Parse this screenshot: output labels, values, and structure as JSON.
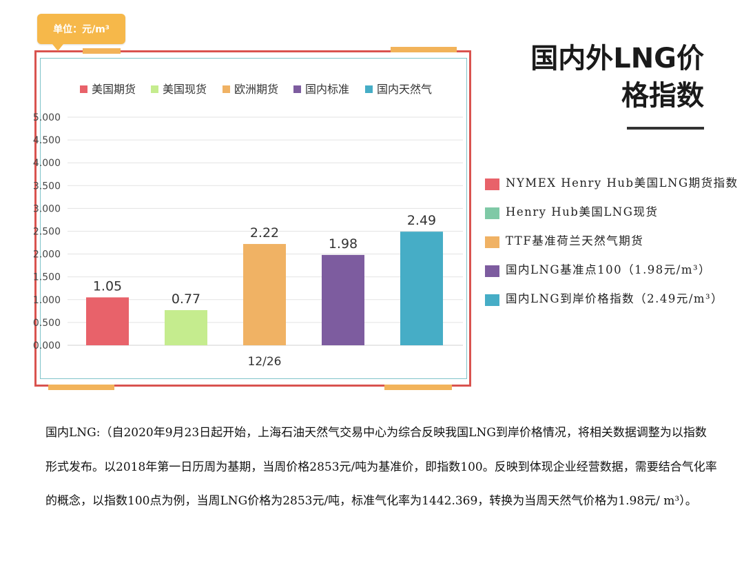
{
  "unit_label": "单位：元/m³",
  "title": "国内外LNG价格指数",
  "title_lines": [
    "国内外LNG价",
    "格指数"
  ],
  "chart_data": {
    "type": "bar",
    "categories": [
      "12/26"
    ],
    "series": [
      {
        "name": "美国期货",
        "values": [
          1.05
        ],
        "color": "#e8626a"
      },
      {
        "name": "美国现货",
        "values": [
          0.77
        ],
        "color": "#c5ec8e"
      },
      {
        "name": "欧洲期货",
        "values": [
          2.22
        ],
        "color": "#f0b264"
      },
      {
        "name": "国内标准",
        "values": [
          1.98
        ],
        "color": "#7d5c9f"
      },
      {
        "name": "国内天然气",
        "values": [
          2.49
        ],
        "color": "#46adc6"
      }
    ],
    "data_labels": [
      "1.05",
      "0.77",
      "2.22",
      "1.98",
      "2.49"
    ],
    "y_ticks": [
      "0.000",
      "0.500",
      "1.000",
      "1.500",
      "2.000",
      "2.500",
      "3.000",
      "3.500",
      "4.000",
      "4.500",
      "5.000"
    ],
    "ylim": [
      0,
      5
    ],
    "grid": true,
    "legend_position": "top",
    "title": "",
    "xlabel": "",
    "ylabel": ""
  },
  "side_legend": [
    {
      "text": "NYMEX Henry Hub美国LNG期货指数",
      "color": "#e8626a"
    },
    {
      "text": "Henry Hub美国LNG现货",
      "color": "#7fc9a6"
    },
    {
      "text": "TTF基准荷兰天然气期货",
      "color": "#f0b264"
    },
    {
      "text": "国内LNG基准点100（1.98元/m³）",
      "color": "#7d5c9f"
    },
    {
      "text": "国内LNG到岸价格指数（2.49元/m³）",
      "color": "#46adc6"
    }
  ],
  "paragraph": "国内LNG:（自2020年9月23日起开始，上海石油天然气交易中心为综合反映我国LNG到岸价格情况，将相关数据调整为以指数形式发布。以2018年第一日历周为基期，当周价格2853元/吨为基准价，即指数100。反映到体现企业经营数据，需要结合气化率的概念，以指数100点为例，当周LNG价格为2853元/吨，标准气化率为1442.369，转换为当周天然气价格为1.98元/ m³）。"
}
